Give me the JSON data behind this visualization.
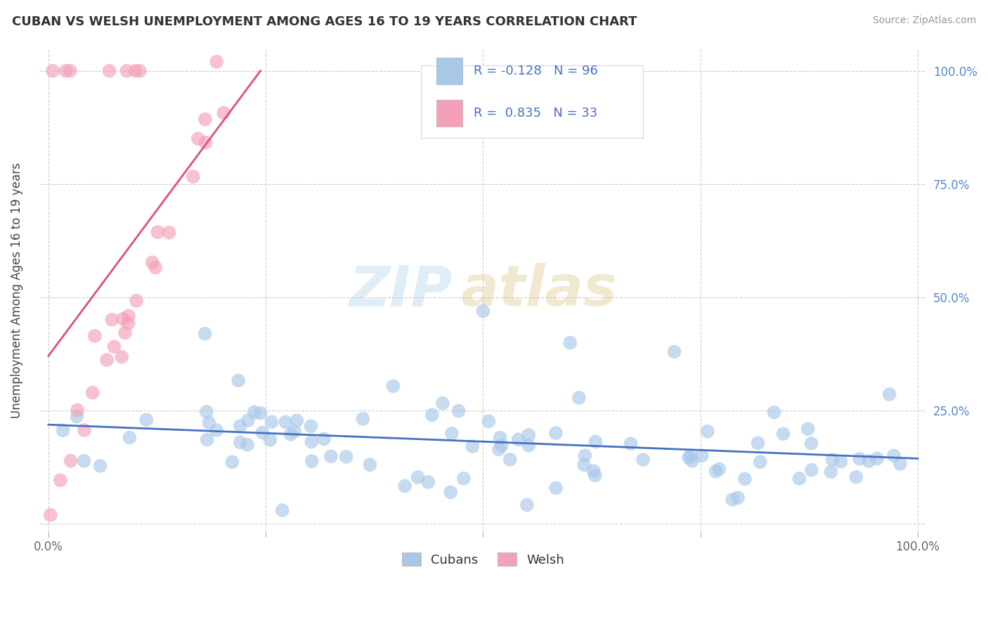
{
  "title": "CUBAN VS WELSH UNEMPLOYMENT AMONG AGES 16 TO 19 YEARS CORRELATION CHART",
  "source": "Source: ZipAtlas.com",
  "ylabel": "Unemployment Among Ages 16 to 19 years",
  "xlim": [
    0.0,
    1.0
  ],
  "ylim": [
    0.0,
    1.0
  ],
  "cuban_color": "#a8c8e8",
  "welsh_color": "#f4a0b8",
  "cuban_line_color": "#4472c4",
  "welsh_line_color": "#e05070",
  "R_cuban": -0.128,
  "N_cuban": 96,
  "R_welsh": 0.835,
  "N_welsh": 33,
  "background_color": "#ffffff",
  "grid_color": "#cccccc",
  "watermark_zip_color": "#c8dff0",
  "watermark_atlas_color": "#e8d8b0"
}
